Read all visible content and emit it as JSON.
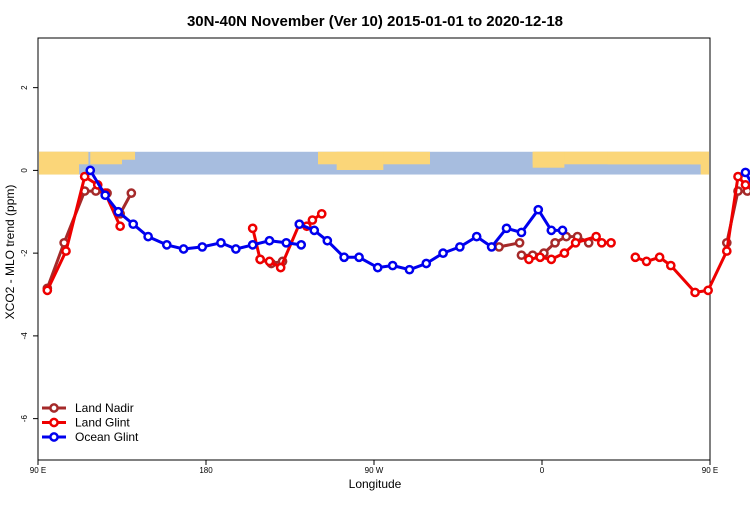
{
  "chart_data": {
    "type": "line",
    "title": "30N-40N November (Ver 10)   2015-01-01 to 2020-12-18",
    "xlabel": "Longitude",
    "ylabel": "XCO2 - MLO trend (ppm)",
    "xlim": [
      90,
      450
    ],
    "ylim": [
      -7,
      3.2
    ],
    "xticks": [
      {
        "value": 90,
        "label": "90 E"
      },
      {
        "value": 180,
        "label": "180"
      },
      {
        "value": 270,
        "label": "90 W"
      },
      {
        "value": 360,
        "label": "0"
      },
      {
        "value": 450,
        "label": "90 E"
      },
      {
        "value": 540,
        "label": "180"
      }
    ],
    "yticks": [
      {
        "value": 2,
        "label": "2"
      },
      {
        "value": 0,
        "label": "0"
      },
      {
        "value": -2,
        "label": "-2"
      },
      {
        "value": -4,
        "label": "-4"
      },
      {
        "value": -6,
        "label": "-6"
      }
    ],
    "grid": false,
    "legend_position": "bottom-left",
    "background_map": {
      "ymin": -0.1,
      "ymax": 0.45,
      "ocean_color": "#a7bddf",
      "land_color": "#fbd679"
    },
    "series": [
      {
        "name": "Land Nadir",
        "color": "#a52a2a",
        "segments": [
          {
            "x": [
              95,
              104,
              115,
              121,
              127
            ],
            "y": [
              -2.85,
              -1.75,
              -0.5,
              -0.5,
              -0.55
            ]
          },
          {
            "x": [
              134,
              140
            ],
            "y": [
              -1.05,
              -0.55
            ]
          },
          {
            "x": [
              209,
              215,
              221
            ],
            "y": [
              -2.15,
              -2.25,
              -2.2
            ]
          },
          {
            "x": [
              337,
              348
            ],
            "y": [
              -1.85,
              -1.75
            ]
          },
          {
            "x": [
              349,
              355,
              361,
              367,
              373,
              379,
              385
            ],
            "y": [
              -2.05,
              -2.05,
              -2.0,
              -1.75,
              -1.6,
              -1.6,
              -1.75
            ]
          },
          {
            "x": [
              459,
              465,
              470,
              480
            ],
            "y": [
              -1.75,
              -0.5,
              -0.5,
              -0.55
            ]
          },
          {
            "x": [
              485,
              491
            ],
            "y": [
              -1.05,
              -0.55
            ]
          }
        ]
      },
      {
        "name": "Land Glint",
        "color": "#ee0000",
        "segments": [
          {
            "x": [
              95,
              105,
              115,
              122,
              126,
              134
            ],
            "y": [
              -2.9,
              -1.95,
              -0.15,
              -0.35,
              -0.55,
              -1.35
            ]
          },
          {
            "x": [
              205,
              209,
              214,
              220,
              230,
              234,
              237,
              242
            ],
            "y": [
              -1.4,
              -2.15,
              -2.2,
              -2.35,
              -1.3,
              -1.35,
              -1.2,
              -1.05
            ]
          },
          {
            "x": [
              353,
              359,
              365,
              372,
              378,
              389,
              392,
              397
            ],
            "y": [
              -2.15,
              -2.1,
              -2.15,
              -2.0,
              -1.75,
              -1.6,
              -1.75,
              -1.75
            ]
          },
          {
            "x": [
              410,
              416,
              423,
              429,
              442,
              449,
              459,
              465,
              469,
              477,
              485
            ],
            "y": [
              -2.1,
              -2.2,
              -2.1,
              -2.3,
              -2.95,
              -2.9,
              -1.95,
              -0.15,
              -0.35,
              -0.5,
              -1.35
            ]
          }
        ]
      },
      {
        "name": "Ocean Glint",
        "color": "#0000ee",
        "segments": [
          {
            "x": [
              118,
              126,
              133,
              141,
              149,
              159,
              168,
              178,
              188,
              196,
              205,
              214,
              223,
              231
            ],
            "y": [
              0.0,
              -0.6,
              -1.0,
              -1.3,
              -1.6,
              -1.8,
              -1.9,
              -1.85,
              -1.75,
              -1.9,
              -1.8,
              -1.7,
              -1.75,
              -1.8
            ]
          },
          {
            "x": [
              230,
              238,
              245,
              254,
              262,
              272,
              280,
              289,
              298,
              307,
              316,
              325,
              333,
              341,
              349,
              358,
              365,
              371
            ],
            "y": [
              -1.3,
              -1.45,
              -1.7,
              -2.1,
              -2.1,
              -2.35,
              -2.3,
              -2.4,
              -2.25,
              -2.0,
              -1.85,
              -1.6,
              -1.85,
              -1.4,
              -1.5,
              -0.95,
              -1.45,
              -1.45
            ]
          },
          {
            "x": [
              469,
              476,
              484,
              492,
              500,
              509,
              516,
              525
            ],
            "y": [
              -0.05,
              -0.6,
              -1.0,
              -1.35,
              -1.6,
              -1.8,
              -1.85,
              -1.9
            ]
          }
        ]
      }
    ]
  }
}
